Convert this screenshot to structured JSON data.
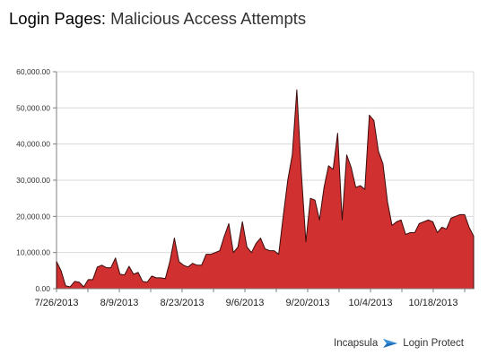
{
  "header": {
    "title_main": "Login Pages:",
    "title_sub": "Malicious Access Attempts"
  },
  "footer": {
    "brand": "Incapsula",
    "product": "Login Protect",
    "logo_icon": "incapsula-arrow-icon",
    "logo_color": "#1f6fb8"
  },
  "colors": {
    "area_fill": "#d03030",
    "area_stroke": "#3a0c0c",
    "grid": "#d9d9d9",
    "axis": "#7f7f7f"
  },
  "chart_data": {
    "type": "area",
    "title": "Malicious Access Attempts",
    "xlabel": "",
    "ylabel": "",
    "ylim": [
      0,
      60000
    ],
    "grid": true,
    "y_ticks": [
      "0.00",
      "10,000.00",
      "20,000.00",
      "30,000.00",
      "40,000.00",
      "50,000.00",
      "60,000.00"
    ],
    "x_ticks": [
      "7/26/2013",
      "8/9/2013",
      "8/23/2013",
      "9/6/2013",
      "9/20/2013",
      "10/4/2013",
      "10/18/2013"
    ],
    "x_start": "7/26/2013",
    "x_end": "10/27/2013",
    "series": [
      {
        "values": [
          7500,
          5000,
          800,
          500,
          2000,
          1800,
          500,
          2500,
          2500,
          6000,
          6500,
          5800,
          5800,
          8500,
          4000,
          3800,
          6200,
          4000,
          4500,
          2000,
          1800,
          3500,
          3000,
          3000,
          2800,
          7500,
          14000,
          7500,
          6500,
          6000,
          7000,
          6500,
          6500,
          9500,
          9500,
          10000,
          10500,
          14500,
          18000,
          10000,
          11500,
          18500,
          11500,
          10000,
          12500,
          14000,
          11000,
          10500,
          10500,
          9500,
          20000,
          30000,
          37000,
          55000,
          32000,
          13000,
          25000,
          24500,
          19000,
          28000,
          34000,
          33000,
          43000,
          19000,
          37000,
          33500,
          28000,
          28500,
          27500,
          48000,
          46500,
          38000,
          34500,
          24000,
          17500,
          18500,
          19000,
          15000,
          15500,
          15500,
          18000,
          18500,
          19000,
          18500,
          15500,
          17000,
          16500,
          19500,
          20000,
          20500,
          20500,
          17000,
          14500
        ]
      }
    ]
  }
}
